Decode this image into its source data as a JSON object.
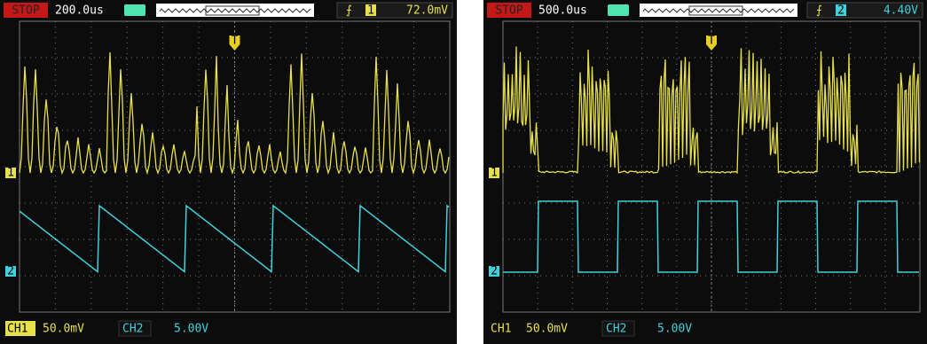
{
  "screens": [
    {
      "status": "STOP",
      "timebase": "200.0us",
      "trigger_channel": "1",
      "trigger_level": "72.0mV",
      "trigger_marker": "T",
      "ch1_marker": "1",
      "ch2_marker": "2",
      "ch1_label": "CH1",
      "ch1_scale": "50.0mV",
      "ch2_label": "CH2",
      "ch2_scale": "5.00V"
    },
    {
      "status": "STOP",
      "timebase": "500.0us",
      "trigger_channel": "2",
      "trigger_level": "4.40V",
      "trigger_marker": "T",
      "ch1_marker": "1",
      "ch2_marker": "2",
      "ch1_label": "CH1",
      "ch1_scale": "50.0mV",
      "ch2_label": "CH2",
      "ch2_scale": "5.00V"
    }
  ]
}
